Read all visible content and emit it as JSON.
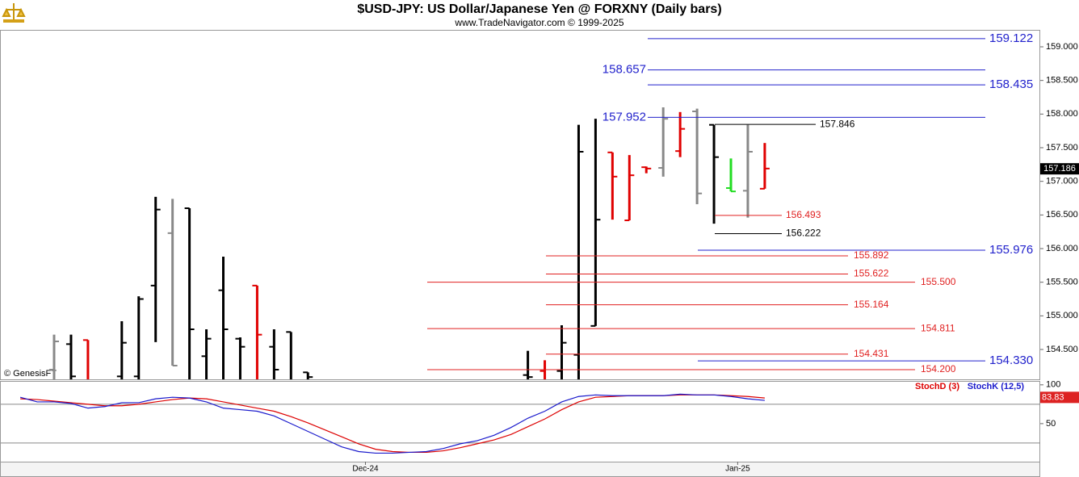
{
  "chart_data": [
    {
      "type": "ohlc",
      "title": "$USD-JPY:  US Dollar/Japanese Yen @ FORXNY  (Daily bars)",
      "subtitle": "www.TradeNavigator.com © 1999-2025",
      "watermark": "© GenesisFT",
      "x": [
        0,
        1,
        2,
        4,
        5,
        6,
        7,
        8,
        9,
        10,
        11,
        12,
        13,
        14,
        15,
        28,
        29,
        30,
        31,
        32,
        33,
        34,
        35,
        36,
        37,
        38,
        39,
        40,
        41,
        42
      ],
      "open": [
        154.2,
        154.58,
        154.64,
        154.1,
        154.1,
        155.45,
        156.23,
        156.6,
        154.4,
        155.38,
        154.66,
        155.45,
        154.54,
        154.76,
        154.16,
        154.12,
        154.18,
        154.18,
        154.42,
        154.85,
        157.43,
        156.42,
        157.21,
        157.2,
        157.45,
        158.04,
        157.84,
        156.9,
        156.86,
        156.89
      ],
      "high": [
        154.72,
        154.72,
        154.64,
        154.92,
        155.29,
        156.77,
        156.74,
        156.6,
        154.8,
        155.88,
        154.68,
        155.45,
        154.8,
        154.76,
        154.16,
        154.48,
        154.34,
        154.86,
        157.84,
        157.93,
        157.43,
        157.39,
        157.22,
        158.1,
        158.03,
        158.08,
        157.84,
        157.34,
        157.84,
        157.57
      ],
      "low": [
        153.9,
        153.9,
        153.9,
        153.95,
        153.9,
        154.61,
        154.26,
        153.9,
        153.9,
        153.9,
        153.9,
        153.9,
        153.9,
        153.9,
        153.9,
        153.9,
        153.9,
        153.9,
        153.9,
        154.85,
        156.43,
        156.42,
        157.12,
        157.07,
        157.36,
        156.66,
        156.37,
        156.85,
        156.46,
        156.89
      ],
      "close": [
        154.62,
        154.1,
        154.0,
        154.6,
        155.25,
        156.58,
        154.26,
        154.8,
        154.66,
        154.8,
        154.54,
        154.72,
        154.2,
        153.95,
        154.09,
        154.09,
        154.0,
        154.6,
        157.44,
        156.43,
        157.07,
        157.09,
        157.19,
        157.93,
        157.78,
        156.82,
        157.36,
        156.85,
        157.44,
        157.19
      ],
      "colors": [
        "#888888",
        "#000000",
        "#e00000",
        "#000000",
        "#000000",
        "#000000",
        "#888888",
        "#000000",
        "#000000",
        "#000000",
        "#000000",
        "#e00000",
        "#000000",
        "#000000",
        "#000000",
        "#000000",
        "#e00000",
        "#000000",
        "#000000",
        "#000000",
        "#e00000",
        "#e00000",
        "#e00000",
        "#888888",
        "#e00000",
        "#888888",
        "#000000",
        "#22dd22",
        "#888888",
        "#e00000"
      ],
      "ylim": [
        154.056,
        159.252
      ],
      "yticks": [
        {
          "value": 154.5,
          "label": "154.500"
        },
        {
          "value": 155,
          "label": "155.000"
        },
        {
          "value": 155.5,
          "label": "155.500"
        },
        {
          "value": 156,
          "label": "156.000"
        },
        {
          "value": 156.5,
          "label": "156.500"
        },
        {
          "value": 157,
          "label": "157.000"
        },
        {
          "value": 157.5,
          "label": "157.500"
        },
        {
          "value": 158,
          "label": "158.000"
        },
        {
          "value": 158.5,
          "label": "158.500"
        },
        {
          "value": 159,
          "label": "159.000"
        }
      ],
      "xticks": [
        {
          "value": 18.4,
          "label": "Dec-24"
        },
        {
          "value": 40.4,
          "label": "Jan-25"
        }
      ],
      "last_price": {
        "value": 157.186,
        "label": "157.186"
      },
      "levels": [
        {
          "value": 159.122,
          "label": "159.122",
          "color": "#2222cc"
        },
        {
          "value": 158.657,
          "label": "158.657",
          "color": "#2222cc"
        },
        {
          "value": 158.435,
          "label": "158.435",
          "color": "#2222cc"
        },
        {
          "value": 157.952,
          "label": "157.952",
          "color": "#2222cc"
        },
        {
          "value": 157.846,
          "label": "157.846",
          "color": "#000000"
        },
        {
          "value": 156.493,
          "label": "156.493",
          "color": "#e02020"
        },
        {
          "value": 156.222,
          "label": "156.222",
          "color": "#000000"
        },
        {
          "value": 155.976,
          "label": "155.976",
          "color": "#2222cc"
        },
        {
          "value": 155.892,
          "label": "155.892",
          "color": "#e02020"
        },
        {
          "value": 155.622,
          "label": "155.622",
          "color": "#e02020"
        },
        {
          "value": 155.5,
          "label": "155.500",
          "color": "#e02020"
        },
        {
          "value": 155.164,
          "label": "155.164",
          "color": "#e02020"
        },
        {
          "value": 154.811,
          "label": "154.811",
          "color": "#e02020"
        },
        {
          "value": 154.431,
          "label": "154.431",
          "color": "#e02020"
        },
        {
          "value": 154.33,
          "label": "154.330",
          "color": "#2222cc"
        },
        {
          "value": 154.2,
          "label": "154.200",
          "color": "#e02020"
        }
      ]
    },
    {
      "type": "line",
      "x": [
        -2,
        -1,
        0,
        1,
        2,
        3,
        4,
        5,
        6,
        7,
        8,
        9,
        10,
        11,
        12,
        13,
        14,
        15,
        16,
        17,
        18,
        19,
        20,
        21,
        22,
        23,
        24,
        25,
        26,
        27,
        28,
        29,
        30,
        31,
        32,
        33,
        34,
        35,
        36,
        37,
        38,
        39,
        40,
        41,
        42
      ],
      "series": [
        {
          "name": "StochD (3)",
          "color": "#dd0000",
          "values": [
            82,
            81,
            79,
            77,
            75,
            73,
            73,
            75,
            78,
            81,
            83,
            82,
            78,
            74,
            70,
            66,
            59,
            51,
            42,
            33,
            24,
            17,
            14,
            13,
            13,
            15,
            19,
            24,
            29,
            36,
            46,
            56,
            68,
            78,
            84,
            85,
            86,
            86,
            86,
            87,
            87,
            87,
            86,
            85,
            83
          ]
        },
        {
          "name": "StochK (12,5)",
          "color": "#1a1acc",
          "values": [
            84,
            78,
            78,
            76,
            70,
            72,
            77,
            77,
            82,
            84,
            83,
            78,
            70,
            68,
            66,
            60,
            50,
            40,
            30,
            20,
            14,
            12,
            12,
            13,
            14,
            18,
            24,
            28,
            35,
            45,
            57,
            66,
            78,
            85,
            87,
            86,
            86,
            86,
            86,
            88,
            87,
            87,
            85,
            82,
            80
          ]
        }
      ],
      "ylim": [
        1,
        105
      ],
      "yticks": [
        50,
        100
      ],
      "reference_lines": [
        25,
        75
      ],
      "readout": {
        "value": 83.83,
        "label": "83.83"
      }
    }
  ]
}
